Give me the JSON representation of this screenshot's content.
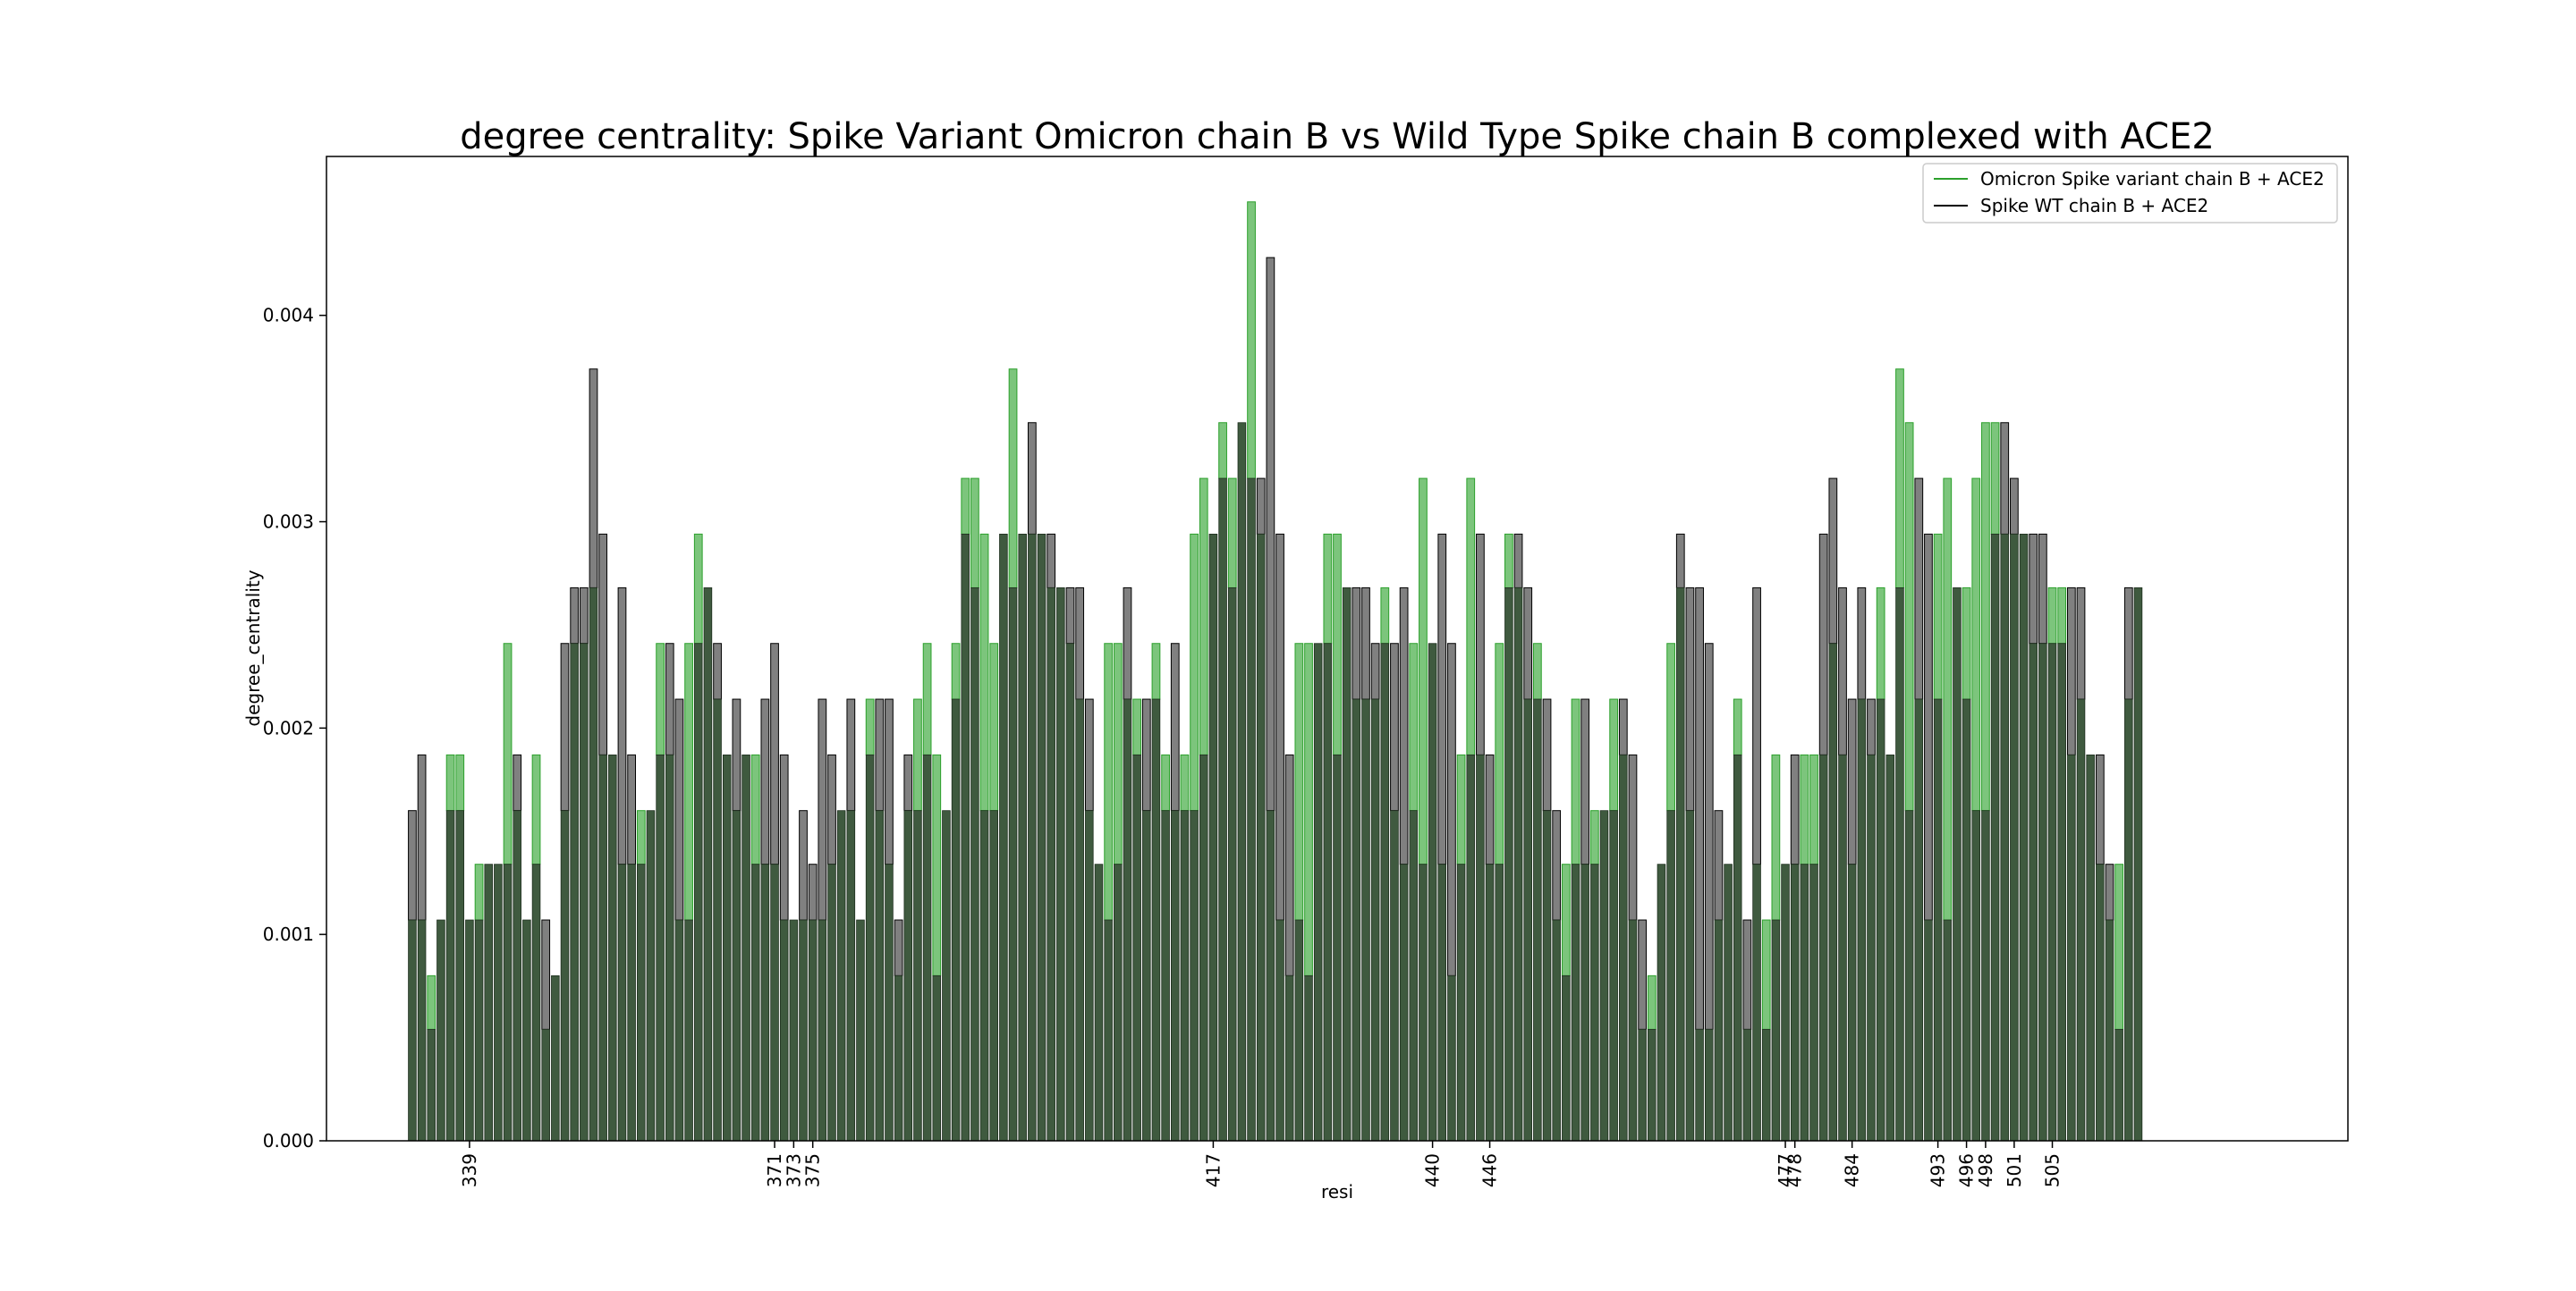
{
  "chart_data": {
    "type": "bar",
    "title": "degree centrality: Spike Variant Omicron chain B vs Wild Type Spike chain B complexed with ACE2",
    "xlabel": "resi",
    "ylabel": "degree_centrality",
    "ylim": [
      0,
      0.00477
    ],
    "yticks": [
      "0.000",
      "0.001",
      "0.002",
      "0.003",
      "0.004"
    ],
    "ytick_values": [
      0,
      0.001,
      0.002,
      0.003,
      0.004
    ],
    "grid": false,
    "legend_position": "top-right",
    "x_start": 333,
    "x_end": 527,
    "xlim": [
      324,
      536
    ],
    "labeled_residues": [
      339,
      371,
      373,
      375,
      417,
      440,
      446,
      477,
      478,
      484,
      493,
      496,
      498,
      501,
      505
    ],
    "series": [
      {
        "name": "Omicron Spike variant chain B + ACE2",
        "color": "#2ca02c",
        "fill": "#7cc57c",
        "values": [
          0.00107,
          0.00107,
          0.0008,
          0.00107,
          0.00187,
          0.00187,
          0.00107,
          0.00134,
          0.00134,
          0.00134,
          0.00241,
          0.0016,
          0.00107,
          0.00187,
          0.00054,
          0.0008,
          0.0016,
          0.00241,
          0.00241,
          0.00268,
          0.00187,
          0.00187,
          0.00134,
          0.00134,
          0.0016,
          0.0016,
          0.00241,
          0.00187,
          0.00107,
          0.00241,
          0.00294,
          0.00268,
          0.00214,
          0.00187,
          0.0016,
          0.00187,
          0.00187,
          0.00134,
          0.00134,
          0.00107,
          0.00107,
          0.00107,
          0.00107,
          0.00107,
          0.00134,
          0.0016,
          0.0016,
          0.00107,
          0.00214,
          0.0016,
          0.00134,
          0.0008,
          0.0016,
          0.00214,
          0.00241,
          0.00187,
          0.0016,
          0.00241,
          0.00321,
          0.00321,
          0.00294,
          0.00241,
          0.00294,
          0.00374,
          0.00294,
          0.00294,
          0.00294,
          0.00268,
          0.00268,
          0.00241,
          0.00214,
          0.0016,
          0.00134,
          0.00241,
          0.00241,
          0.00214,
          0.00214,
          0.0016,
          0.00241,
          0.00187,
          0.0016,
          0.00187,
          0.00294,
          0.00321,
          0.00294,
          0.00348,
          0.00321,
          0.00348,
          0.00455,
          0.00294,
          0.0016,
          0.00107,
          0.0008,
          0.00241,
          0.00241,
          0.00241,
          0.00294,
          0.00294,
          0.00268,
          0.00214,
          0.00214,
          0.00214,
          0.00268,
          0.0016,
          0.00134,
          0.00241,
          0.00321,
          0.00241,
          0.00134,
          0.0008,
          0.00187,
          0.00321,
          0.00187,
          0.00134,
          0.00241,
          0.00294,
          0.00268,
          0.00214,
          0.00241,
          0.0016,
          0.00107,
          0.00134,
          0.00214,
          0.00134,
          0.0016,
          0.0016,
          0.00214,
          0.00187,
          0.00107,
          0.00054,
          0.0008,
          0.00134,
          0.00241,
          0.00268,
          0.0016,
          0.00054,
          0.00054,
          0.00107,
          0.00134,
          0.00214,
          0.00054,
          0.00134,
          0.00107,
          0.00187,
          0.00134,
          0.00134,
          0.00187,
          0.00187,
          0.00187,
          0.00241,
          0.00187,
          0.00134,
          0.00214,
          0.00187,
          0.00268,
          0.00187,
          0.00374,
          0.00348,
          0.00214,
          0.00107,
          0.00294,
          0.00321,
          0.00268,
          0.00268,
          0.00321,
          0.00348,
          0.00348,
          0.00294,
          0.00294,
          0.00294,
          0.00241,
          0.00241,
          0.00268,
          0.00268,
          0.00187,
          0.00214,
          0.00187,
          0.00134,
          0.00107,
          0.00134,
          0.00214,
          0.00268
        ],
        "_note": ""
      },
      {
        "name": "Spike WT chain B + ACE2",
        "color": "#000000",
        "fill": "#808080",
        "values": [
          0.0016,
          0.00187,
          0.00054,
          0.00107,
          0.0016,
          0.0016,
          0.00107,
          0.00107,
          0.00134,
          0.00134,
          0.00134,
          0.00187,
          0.00107,
          0.00134,
          0.00107,
          0.0008,
          0.00241,
          0.00268,
          0.00268,
          0.00374,
          0.00294,
          0.00187,
          0.00268,
          0.00187,
          0.00134,
          0.0016,
          0.00187,
          0.00241,
          0.00214,
          0.00107,
          0.00241,
          0.00268,
          0.00241,
          0.00187,
          0.00214,
          0.00187,
          0.00134,
          0.00214,
          0.00241,
          0.00187,
          0.00107,
          0.0016,
          0.00134,
          0.00214,
          0.00187,
          0.0016,
          0.00214,
          0.00107,
          0.00187,
          0.00214,
          0.00214,
          0.00107,
          0.00187,
          0.0016,
          0.00187,
          0.0008,
          0.0016,
          0.00214,
          0.00294,
          0.00268,
          0.0016,
          0.0016,
          0.00294,
          0.00268,
          0.00294,
          0.00348,
          0.00294,
          0.00294,
          0.00268,
          0.00268,
          0.00268,
          0.00214,
          0.00134,
          0.00107,
          0.00134,
          0.00268,
          0.00187,
          0.00214,
          0.00214,
          0.0016,
          0.00241,
          0.0016,
          0.0016,
          0.00187,
          0.00294,
          0.00321,
          0.00268,
          0.00348,
          0.00321,
          0.00321,
          0.00428,
          0.00294,
          0.00187,
          0.00107,
          0.0008,
          0.00241,
          0.00241,
          0.00187,
          0.00268,
          0.00268,
          0.00268,
          0.00241,
          0.00241,
          0.00241,
          0.00268,
          0.0016,
          0.00134,
          0.00241,
          0.00294,
          0.00241,
          0.00134,
          0.00187,
          0.00294,
          0.00187,
          0.00134,
          0.00268,
          0.00294,
          0.00268,
          0.00214,
          0.00214,
          0.0016,
          0.0008,
          0.00134,
          0.00214,
          0.00134,
          0.0016,
          0.0016,
          0.00214,
          0.00187,
          0.00107,
          0.00054,
          0.00134,
          0.0016,
          0.00294,
          0.00268,
          0.00268,
          0.00241,
          0.0016,
          0.00134,
          0.00187,
          0.00107,
          0.00268,
          0.00054,
          0.00107,
          0.00134,
          0.00187,
          0.00134,
          0.00134,
          0.00294,
          0.00321,
          0.00268,
          0.00214,
          0.00268,
          0.00214,
          0.00214,
          0.00187,
          0.00268,
          0.0016,
          0.00321,
          0.00294,
          0.00214,
          0.00107,
          0.00268,
          0.00214,
          0.0016,
          0.0016,
          0.00294,
          0.00348,
          0.00321,
          0.00294,
          0.00294,
          0.00294,
          0.00241,
          0.00241,
          0.00268,
          0.00268,
          0.00187,
          0.00187,
          0.00134,
          0.00054,
          0.00268,
          0.00268,
          0.00214,
          0.00268
        ],
        "_note": ""
      }
    ]
  }
}
